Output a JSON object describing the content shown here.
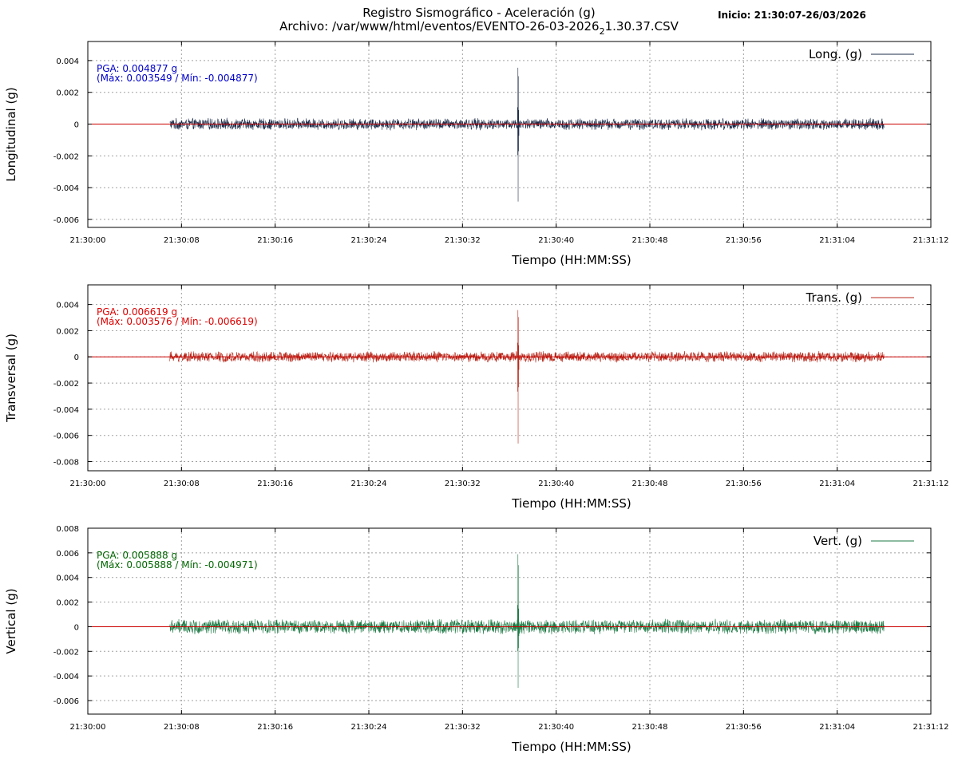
{
  "header": {
    "title_line1": "Registro Sismográfico - Aceleración (g)",
    "title_line2_pre": "Archivo: /var/www/html/eventos/EVENTO-26-03-2026",
    "title_line2_sub": "2",
    "title_line2_post": "1.30.37.CSV",
    "start_label": "Inicio: 21:30:07-26/03/2026"
  },
  "colors": {
    "zero_line": "#cc0000",
    "grid": "#a0a0a0"
  },
  "chart_data": [
    {
      "type": "line",
      "ylabel": "Longitudinal (g)",
      "xlabel": "Tiempo (HH:MM:SS)",
      "legend": "Long. (g)",
      "legend_position": "top-right",
      "color": "#1e2d4a",
      "annotation_color": "#0000cc",
      "annotation_line1": "PGA: 0.004877 g",
      "annotation_line2": "(Máx: 0.003549 / Mín: -0.004877)",
      "xlim": [
        "21:30:00",
        "21:31:12"
      ],
      "x_ticks": [
        "21:30:00",
        "21:30:08",
        "21:30:16",
        "21:30:24",
        "21:30:32",
        "21:30:40",
        "21:30:48",
        "21:30:56",
        "21:31:04",
        "21:31:12"
      ],
      "ylim": [
        -0.0065,
        0.0052
      ],
      "y_ticks": [
        0.004,
        0.002,
        0,
        -0.002,
        -0.004,
        -0.006
      ],
      "y_tick_labels": [
        "0.004",
        "0.002",
        "0",
        "-0.002",
        "-0.004",
        "-0.006"
      ],
      "grid": true,
      "data_start": "21:30:07",
      "data_end": "21:31:08",
      "peak_time": "21:30:37",
      "max": 0.003549,
      "min": -0.004877,
      "noise_amplitude": 0.0004
    },
    {
      "type": "line",
      "ylabel": "Transversal (g)",
      "xlabel": "Tiempo (HH:MM:SS)",
      "legend": "Trans. (g)",
      "legend_position": "top-right",
      "color": "#b8291c",
      "annotation_color": "#dd0000",
      "annotation_line1": "PGA: 0.006619 g",
      "annotation_line2": "(Máx: 0.003576 / Mín: -0.006619)",
      "xlim": [
        "21:30:00",
        "21:31:12"
      ],
      "x_ticks": [
        "21:30:00",
        "21:30:08",
        "21:30:16",
        "21:30:24",
        "21:30:32",
        "21:30:40",
        "21:30:48",
        "21:30:56",
        "21:31:04",
        "21:31:12"
      ],
      "ylim": [
        -0.0087,
        0.0055
      ],
      "y_ticks": [
        0.004,
        0.002,
        0,
        -0.002,
        -0.004,
        -0.006,
        -0.008
      ],
      "y_tick_labels": [
        "0.004",
        "0.002",
        "0",
        "-0.002",
        "-0.004",
        "-0.006",
        "-0.008"
      ],
      "grid": true,
      "data_start": "21:30:07",
      "data_end": "21:31:08",
      "peak_time": "21:30:37",
      "max": 0.003576,
      "min": -0.006619,
      "noise_amplitude": 0.00045
    },
    {
      "type": "line",
      "ylabel": "Vertical (g)",
      "xlabel": "Tiempo (HH:MM:SS)",
      "legend": "Vert. (g)",
      "legend_position": "top-right",
      "color": "#1e7a45",
      "annotation_color": "#006600",
      "annotation_line1": "PGA: 0.005888 g",
      "annotation_line2": "(Máx: 0.005888 / Mín: -0.004971)",
      "xlim": [
        "21:30:00",
        "21:31:12"
      ],
      "x_ticks": [
        "21:30:00",
        "21:30:08",
        "21:30:16",
        "21:30:24",
        "21:30:32",
        "21:30:40",
        "21:30:48",
        "21:30:56",
        "21:31:04",
        "21:31:12"
      ],
      "ylim": [
        -0.0071,
        0.008
      ],
      "y_ticks": [
        0.008,
        0.006,
        0.004,
        0.002,
        0,
        -0.002,
        -0.004,
        -0.006
      ],
      "y_tick_labels": [
        "0.008",
        "0.006",
        "0.004",
        "0.002",
        "0",
        "-0.002",
        "-0.004",
        "-0.006"
      ],
      "grid": true,
      "data_start": "21:30:07",
      "data_end": "21:31:08",
      "peak_time": "21:30:37",
      "max": 0.005888,
      "min": -0.004971,
      "noise_amplitude": 0.00065
    }
  ]
}
